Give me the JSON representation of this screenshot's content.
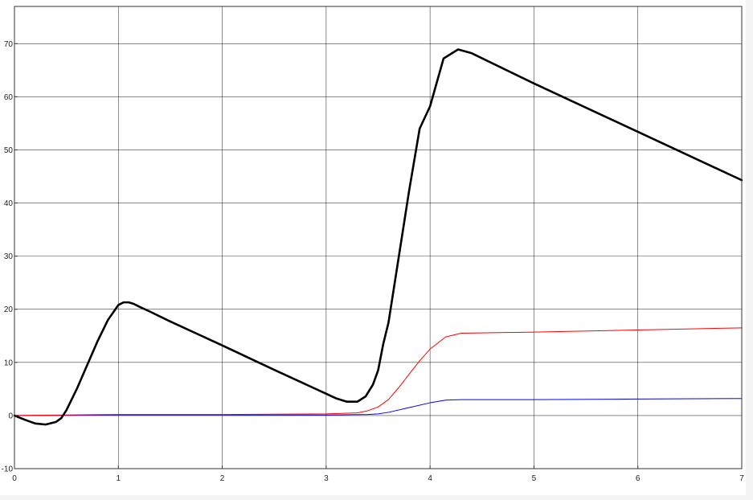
{
  "chart_data": {
    "type": "line",
    "title": "",
    "xlabel": "",
    "ylabel": "",
    "xlim": [
      0,
      7
    ],
    "ylim": [
      -10,
      77
    ],
    "xticks": [
      0,
      1,
      2,
      3,
      4,
      5,
      6,
      7
    ],
    "yticks": [
      -10,
      0,
      10,
      20,
      30,
      40,
      50,
      60,
      70
    ],
    "grid": true,
    "legend": "none",
    "series": [
      {
        "color": "#000000",
        "x": [
          0,
          0.1,
          0.2,
          0.3,
          0.4,
          0.45,
          0.5,
          0.6,
          0.7,
          0.8,
          0.9,
          1.0,
          1.05,
          1.1,
          1.15,
          1.2,
          1.3,
          1.5,
          2.0,
          2.5,
          3.0,
          3.1,
          3.2,
          3.3,
          3.38,
          3.45,
          3.5,
          3.55,
          3.6,
          3.7,
          3.8,
          3.9,
          4.0,
          4.13,
          4.27,
          4.4,
          5.0,
          6.0,
          7.0
        ],
        "values": [
          0,
          -0.8,
          -1.5,
          -1.7,
          -1.2,
          -0.5,
          1.0,
          5.0,
          9.5,
          14.0,
          18.0,
          20.8,
          21.3,
          21.3,
          21.0,
          20.5,
          19.6,
          17.7,
          13.2,
          8.6,
          4.1,
          3.2,
          2.6,
          2.6,
          3.6,
          5.8,
          8.5,
          13.5,
          17.5,
          30.0,
          42.5,
          54.0,
          58.2,
          67.2,
          68.9,
          68.2,
          62.5,
          53.4,
          44.3
        ]
      },
      {
        "color": "#ff0000",
        "x": [
          0,
          0.5,
          1.0,
          2.0,
          3.0,
          3.3,
          3.4,
          3.5,
          3.6,
          3.7,
          3.8,
          3.9,
          4.0,
          4.15,
          4.3,
          5.0,
          6.0,
          7.0
        ],
        "values": [
          0,
          0.1,
          0.2,
          0.2,
          0.3,
          0.5,
          0.9,
          1.6,
          3.0,
          5.3,
          7.8,
          10.3,
          12.5,
          14.8,
          15.5,
          15.7,
          16.1,
          16.5
        ]
      },
      {
        "color": "#0000ff",
        "x": [
          0,
          1.0,
          2.0,
          3.0,
          3.4,
          3.5,
          3.6,
          3.8,
          4.0,
          4.15,
          4.3,
          5.0,
          6.0,
          7.0
        ],
        "values": [
          0,
          0.1,
          0.1,
          0.1,
          0.2,
          0.3,
          0.6,
          1.5,
          2.4,
          2.9,
          3.0,
          3.0,
          3.1,
          3.2
        ]
      }
    ]
  },
  "colors": {
    "background": "#ffffff",
    "grid": "#000000",
    "axis": "#333333",
    "frame_border": "#d8d8d8"
  }
}
